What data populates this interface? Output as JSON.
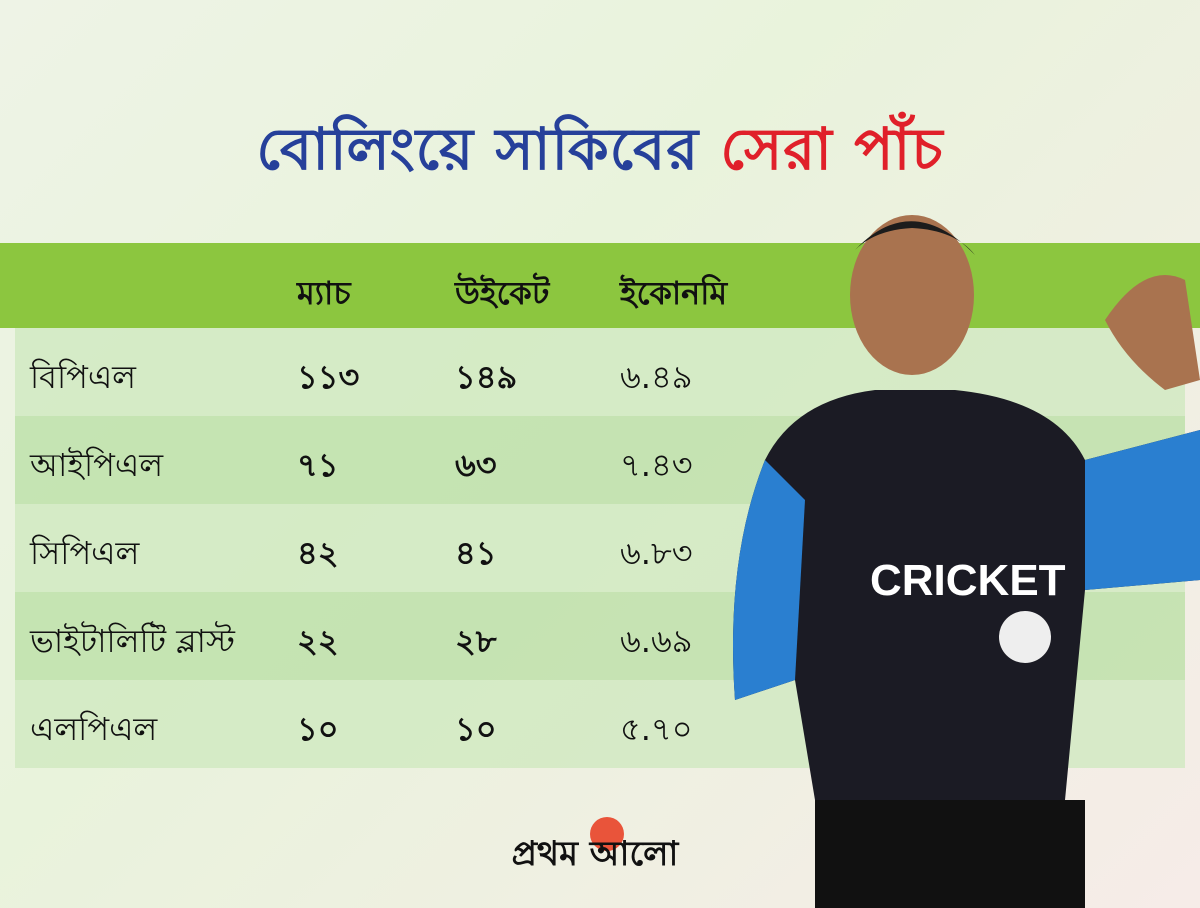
{
  "title": {
    "part1": "বোলিংয়ে সাকিবের",
    "part2": "সেরা পাঁচ"
  },
  "colors": {
    "title_blue": "#26409a",
    "title_red": "#e0202a",
    "header_green": "#8cc63f"
  },
  "chart_data": {
    "type": "table",
    "columns": [
      "",
      "ম্যাচ",
      "উইকেট",
      "ইকোনমি"
    ],
    "rows": [
      [
        "বিপিএল",
        "১১৩",
        "১৪৯",
        "৬.৪৯"
      ],
      [
        "আইপিএল",
        "৭১",
        "৬৩",
        "৭.৪৩"
      ],
      [
        "সিপিএল",
        "৪২",
        "৪১",
        "৬.৮৩"
      ],
      [
        "ভাইটালিটি ব্লাস্ট",
        "২২",
        "২৮",
        "৬.৬৯"
      ],
      [
        "এলপিএল",
        "১০",
        "১০",
        "৫.৭০"
      ]
    ]
  },
  "player_jersey_text": "CRICKET",
  "logo": {
    "text": "প্রথম আলো",
    "icon": "sun-icon"
  }
}
